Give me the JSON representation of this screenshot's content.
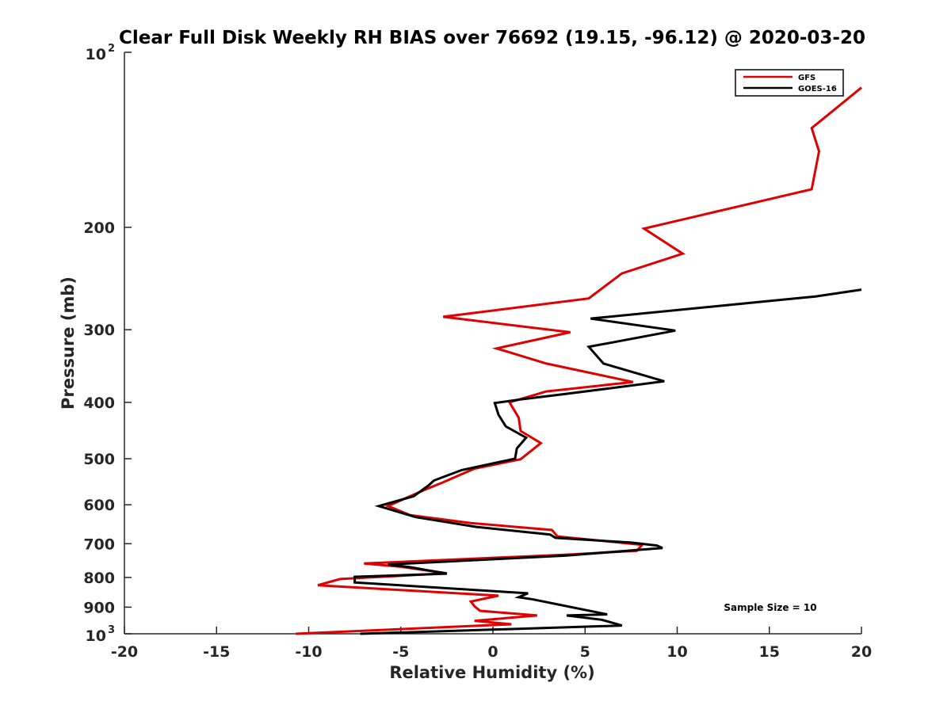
{
  "chart_data": {
    "type": "line",
    "title": "Clear Full Disk Weekly RH BIAS over 76692 (19.15, -96.12) @ 2020-03-20",
    "xlabel": "Relative Humidity (%)",
    "ylabel": "Pressure (mb)",
    "xlim": [
      -20,
      20
    ],
    "ylim": [
      100,
      1000
    ],
    "yscale": "log",
    "y_reversed": true,
    "x_ticks": [
      -20,
      -15,
      -10,
      -5,
      0,
      5,
      10,
      15,
      20
    ],
    "x_tick_labels": [
      "-20",
      "-15",
      "-10",
      "-5",
      "0",
      "5",
      "10",
      "15",
      "20"
    ],
    "y_ticks": [
      200,
      300,
      400,
      500,
      600,
      700,
      800,
      900
    ],
    "y_tick_labels": [
      "200",
      "300",
      "400",
      "500",
      "600",
      "700",
      "800",
      "900"
    ],
    "y_top_label": {
      "base": "10",
      "exp": "2"
    },
    "y_bottom_label": {
      "base": "10",
      "exp": "3"
    },
    "legend": {
      "placement": "top-right",
      "entries": [
        "GFS",
        "GOES-16"
      ]
    },
    "annotation": "Sample Size = 10",
    "series": [
      {
        "name": "GFS",
        "color": "#e00000",
        "points": [
          [
            20.0,
            115
          ],
          [
            17.3,
            135
          ],
          [
            17.7,
            148
          ],
          [
            17.3,
            172
          ],
          [
            8.2,
            201
          ],
          [
            10.3,
            222
          ],
          [
            7.0,
            240
          ],
          [
            5.2,
            265
          ],
          [
            -2.7,
            285
          ],
          [
            4.2,
            303
          ],
          [
            0.2,
            323
          ],
          [
            2.9,
            343
          ],
          [
            7.6,
            369
          ],
          [
            2.9,
            383
          ],
          [
            0.9,
            400
          ],
          [
            1.4,
            425
          ],
          [
            1.5,
            448
          ],
          [
            2.6,
            470
          ],
          [
            1.5,
            501
          ],
          [
            -1.0,
            520
          ],
          [
            -2.7,
            549
          ],
          [
            -3.5,
            562
          ],
          [
            -4.5,
            580
          ],
          [
            -5.7,
            603
          ],
          [
            -4.5,
            625
          ],
          [
            -1.2,
            645
          ],
          [
            3.2,
            663
          ],
          [
            3.5,
            680
          ],
          [
            8.1,
            703
          ],
          [
            7.8,
            720
          ],
          [
            4.0,
            731
          ],
          [
            -7.0,
            757
          ],
          [
            -5.0,
            767
          ],
          [
            -2.5,
            787
          ],
          [
            -8.3,
            805
          ],
          [
            -9.5,
            825
          ],
          [
            0.3,
            860
          ],
          [
            -1.2,
            880
          ],
          [
            -1.0,
            897
          ],
          [
            -0.7,
            913
          ],
          [
            2.4,
            930
          ],
          [
            -1.0,
            950
          ],
          [
            1.0,
            963
          ],
          [
            -10.7,
            1000
          ]
        ]
      },
      {
        "name": "GOES-16",
        "color": "#000000",
        "points": [
          [
            20.0,
            256
          ],
          [
            17.5,
            263
          ],
          [
            5.3,
            287
          ],
          [
            9.9,
            301
          ],
          [
            5.2,
            321
          ],
          [
            6.0,
            343
          ],
          [
            9.3,
            368
          ],
          [
            3.9,
            387
          ],
          [
            1.6,
            395
          ],
          [
            0.1,
            401
          ],
          [
            0.3,
            420
          ],
          [
            0.7,
            440
          ],
          [
            1.8,
            460
          ],
          [
            1.3,
            480
          ],
          [
            1.2,
            500
          ],
          [
            -1.7,
            523
          ],
          [
            -3.2,
            545
          ],
          [
            -3.5,
            556
          ],
          [
            -4.3,
            580
          ],
          [
            -6.2,
            603
          ],
          [
            -4.2,
            630
          ],
          [
            -0.9,
            655
          ],
          [
            3.1,
            675
          ],
          [
            3.4,
            684
          ],
          [
            7.5,
            697
          ],
          [
            8.9,
            705
          ],
          [
            9.2,
            712
          ],
          [
            3.9,
            734
          ],
          [
            -5.7,
            760
          ],
          [
            -4.5,
            768
          ],
          [
            -2.5,
            788
          ],
          [
            -7.5,
            798
          ],
          [
            -7.5,
            816
          ],
          [
            1.9,
            852
          ],
          [
            1.4,
            865
          ],
          [
            2.2,
            873
          ],
          [
            6.2,
            926
          ],
          [
            4.0,
            930
          ],
          [
            5.9,
            946
          ],
          [
            7.0,
            968
          ],
          [
            -7.2,
            1000
          ]
        ]
      }
    ]
  }
}
